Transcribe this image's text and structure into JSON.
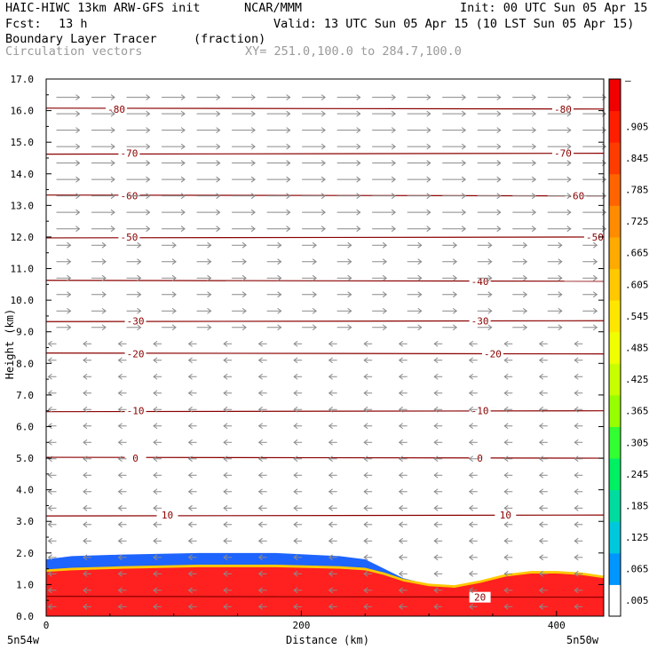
{
  "header": {
    "model": "HAIC-HIWC 13km ARW-GFS init",
    "org": "NCAR/MMM",
    "init": "Init: 00 UTC Sun 05 Apr 15",
    "fcst_label": "Fcst:",
    "fcst_value": "13 h",
    "valid": "Valid: 13 UTC Sun 05 Apr 15 (10 LST Sun 05 Apr 15)",
    "field": "Boundary Layer Tracer",
    "units": "(fraction)",
    "vectors": "Circulation vectors",
    "xy": "XY= 251.0,100.0 to 284.7,100.0"
  },
  "chart_data": {
    "type": "heatmap",
    "xlabel": "Distance (km)",
    "ylabel": "Height (km)",
    "xlim": [
      0,
      437
    ],
    "ylim": [
      0,
      17
    ],
    "x_ticks": [
      0,
      200,
      400
    ],
    "y_ticks": [
      "0.0",
      "1.0",
      "2.0",
      "3.0",
      "4.0",
      "5.0",
      "6.0",
      "7.0",
      "8.0",
      "9.0",
      "10.0",
      "11.0",
      "12.0",
      "13.0",
      "14.0",
      "15.0",
      "16.0",
      "17.0"
    ],
    "left_endpoint": "5n54w",
    "right_endpoint": "5n50w",
    "colorbar": {
      "labels": [
        ".005",
        ".065",
        ".125",
        ".185",
        ".245",
        ".305",
        ".365",
        ".425",
        ".485",
        ".545",
        ".605",
        ".665",
        ".725",
        ".785",
        ".845",
        ".905"
      ],
      "top_label": "–",
      "colors": [
        "#ffffff",
        "#0096ff",
        "#00c8dc",
        "#00dca0",
        "#00f064",
        "#32ff32",
        "#96ff00",
        "#c8ff00",
        "#f0ff00",
        "#ffe600",
        "#ffc800",
        "#ffaa00",
        "#ff8c00",
        "#ff6400",
        "#ff3c00",
        "#ff1e00",
        "#f00000"
      ]
    },
    "tracer": {
      "x": [
        0,
        20,
        60,
        120,
        180,
        230,
        250,
        265,
        280,
        300,
        320,
        340,
        360,
        380,
        400,
        420,
        437
      ],
      "top_km": [
        1.4,
        1.45,
        1.5,
        1.55,
        1.55,
        1.5,
        1.45,
        1.3,
        1.1,
        0.95,
        0.9,
        1.05,
        1.25,
        1.35,
        1.35,
        1.3,
        1.2
      ],
      "blue_top_km": [
        1.8,
        1.9,
        1.95,
        2.0,
        2.0,
        1.9,
        1.8,
        1.5,
        1.2,
        1.0,
        0.95,
        1.1,
        1.3,
        1.4,
        1.4,
        1.35,
        1.25
      ]
    },
    "isotherms_label": "temperature contours",
    "contours": [
      {
        "label": "-80",
        "h": 16.05,
        "lx": [
          55,
          405
        ]
      },
      {
        "label": "-70",
        "h": 14.65,
        "lx": [
          65,
          405
        ]
      },
      {
        "label": "-60",
        "h": 13.3,
        "lx": [
          65,
          415
        ]
      },
      {
        "label": "-50",
        "h": 12.0,
        "lx": [
          65,
          430
        ]
      },
      {
        "label": "-40",
        "h": 10.6,
        "lx": [
          340
        ]
      },
      {
        "label": "-30",
        "h": 9.35,
        "lx": [
          70,
          340
        ]
      },
      {
        "label": "-20",
        "h": 8.3,
        "lx": [
          70,
          350
        ]
      },
      {
        "label": "-10",
        "h": 6.5,
        "lx": [
          70,
          340
        ]
      },
      {
        "label": "0",
        "h": 5.0,
        "lx": [
          70,
          340
        ]
      },
      {
        "label": "10",
        "h": 3.2,
        "lx": [
          95,
          360
        ]
      },
      {
        "label": "20",
        "h": 0.6,
        "lx": [
          340
        ]
      }
    ]
  }
}
